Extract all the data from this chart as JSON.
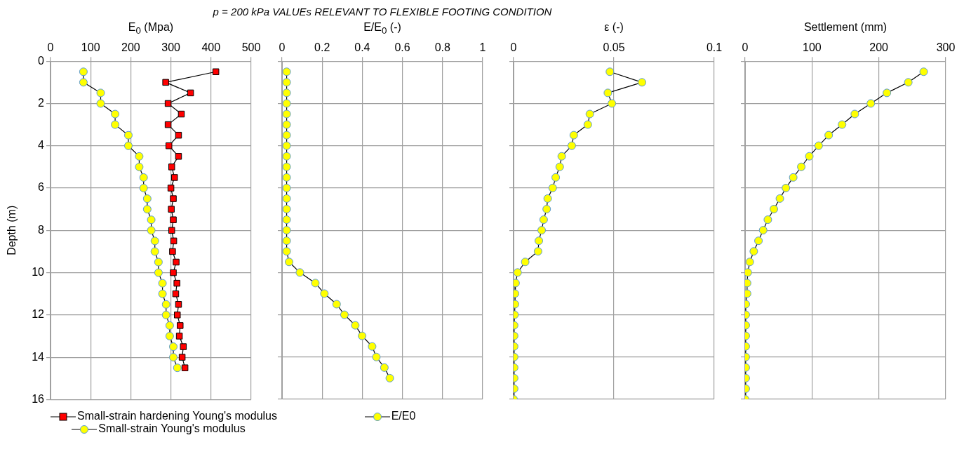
{
  "chart_data": [
    {
      "type": "line",
      "xlabel": "E$_{0}$ (Mpa)",
      "ylabel": "Depth (m)",
      "xlim": [
        0,
        500
      ],
      "xticks": [
        0,
        100,
        200,
        300,
        400,
        500
      ],
      "ylim": [
        16,
        0
      ],
      "yticks": [
        0,
        2,
        4,
        6,
        8,
        10,
        12,
        14,
        16
      ],
      "grid": true,
      "legend": "bottom",
      "marker": "circle",
      "series": [
        {
          "name": "Small-strain hardening Young's modulus",
          "color": "#ff0000",
          "marker": "square",
          "x": [
            412,
            287,
            349,
            293,
            326,
            293,
            319,
            295,
            319,
            302,
            309,
            300,
            306,
            301,
            306,
            302,
            307,
            304,
            313,
            306,
            315,
            312,
            319,
            316,
            323,
            321,
            331,
            328,
            335
          ],
          "values": [
            0.5,
            1,
            1.5,
            2,
            2.5,
            3,
            3.5,
            4,
            4.5,
            5,
            5.5,
            6,
            6.5,
            7,
            7.5,
            8,
            8.5,
            9,
            9.5,
            10,
            10.5,
            11,
            11.5,
            12,
            12.5,
            13,
            13.5,
            14,
            14.5
          ]
        },
        {
          "name": "Small-strain Young's modulus",
          "color": "#ffff00",
          "x": [
            82,
            82,
            125,
            125,
            161,
            161,
            194,
            194,
            221,
            221,
            232,
            232,
            241,
            241,
            251,
            251,
            260,
            260,
            269,
            269,
            279,
            279,
            288,
            288,
            297,
            297,
            306,
            306,
            316
          ],
          "values": [
            0.5,
            1,
            1.5,
            2,
            2.5,
            3,
            3.5,
            4,
            4.5,
            5,
            5.5,
            6,
            6.5,
            7,
            7.5,
            8,
            8.5,
            9,
            9.5,
            10,
            10.5,
            11,
            11.5,
            12,
            12.5,
            13,
            13.5,
            14,
            14.5
          ]
        }
      ]
    },
    {
      "type": "line",
      "title": "p = 200 kPa VALUEs RELEVANT TO FLEXIBLE FOOTING CONDITION",
      "xlabel": "E/E$_{0}$ (-)",
      "xlim": [
        0,
        1
      ],
      "xticks": [
        0,
        0.2,
        0.4,
        0.6,
        0.8,
        1
      ],
      "ylim": [
        16,
        0
      ],
      "yticks": [
        0,
        2,
        4,
        6,
        8,
        10,
        12,
        14,
        16
      ],
      "tick_labels": "x",
      "grid": true,
      "legend": "bottom",
      "marker": "circle",
      "series": [
        {
          "name": "E/E0",
          "color": "#ffff00",
          "x": [
            0.023,
            0.023,
            0.023,
            0.023,
            0.023,
            0.023,
            0.023,
            0.023,
            0.023,
            0.023,
            0.023,
            0.023,
            0.023,
            0.023,
            0.023,
            0.023,
            0.023,
            0.023,
            0.035,
            0.089,
            0.166,
            0.211,
            0.272,
            0.311,
            0.365,
            0.399,
            0.449,
            0.47,
            0.51,
            0.537
          ],
          "values": [
            0.5,
            1,
            1.5,
            2,
            2.5,
            3,
            3.5,
            4,
            4.5,
            5,
            5.5,
            6,
            6.5,
            7,
            7.5,
            8,
            8.5,
            9,
            9.5,
            10,
            10.5,
            11,
            11.5,
            12,
            12.5,
            13,
            13.5,
            14,
            14.5,
            15
          ]
        }
      ]
    },
    {
      "type": "line",
      "xlabel": "ε (-)",
      "xlim": [
        0,
        0.1
      ],
      "xticks": [
        0,
        0.05,
        0.1
      ],
      "ylim": [
        16,
        0
      ],
      "yticks": [
        0,
        2,
        4,
        6,
        8,
        10,
        12,
        14,
        16
      ],
      "tick_labels": "x",
      "grid": true,
      "marker": "circle",
      "series": [
        {
          "color": "#ffff00",
          "x": [
            0.048,
            0.064,
            0.047,
            0.049,
            0.038,
            0.037,
            0.03,
            0.029,
            0.024,
            0.023,
            0.021,
            0.0195,
            0.017,
            0.0165,
            0.015,
            0.014,
            0.0126,
            0.0122,
            0.0058,
            0.002,
            0.001,
            0.0007,
            0.0007,
            0.0005,
            0.0003,
            0.0003,
            0.0003,
            0.0003,
            0.0003,
            0.0003,
            0.0003,
            0
          ],
          "values": [
            0.5,
            1,
            1.5,
            2,
            2.5,
            3,
            3.5,
            4,
            4.5,
            5,
            5.5,
            6,
            6.5,
            7,
            7.5,
            8,
            8.5,
            9,
            9.5,
            10,
            10.5,
            11,
            11.5,
            12,
            12.5,
            13,
            13.5,
            14,
            14.5,
            15,
            15.5,
            16
          ]
        }
      ]
    },
    {
      "type": "line",
      "xlabel": "Settlement (mm)",
      "xlim": [
        0,
        300
      ],
      "xticks": [
        0,
        100,
        200,
        300
      ],
      "ylim": [
        16,
        0
      ],
      "yticks": [
        0,
        2,
        4,
        6,
        8,
        10,
        12,
        14,
        16
      ],
      "tick_labels": "x",
      "grid": true,
      "marker": "circle",
      "series": [
        {
          "color": "#ffff00",
          "x": [
            267,
            244,
            212,
            188,
            164,
            145,
            125,
            110,
            96,
            84,
            72,
            61,
            52,
            43,
            34,
            27,
            20,
            13,
            7,
            4,
            3,
            3,
            1,
            1,
            1,
            1,
            1,
            1,
            1,
            1,
            1,
            0
          ],
          "values": [
            0.5,
            1,
            1.5,
            2,
            2.5,
            3,
            3.5,
            4,
            4.5,
            5,
            5.5,
            6,
            6.5,
            7,
            7.5,
            8,
            8.5,
            9,
            9.5,
            10,
            10.5,
            11,
            11.5,
            12,
            12.5,
            13,
            13.5,
            14,
            14.5,
            15,
            15.5,
            16
          ]
        }
      ]
    }
  ]
}
